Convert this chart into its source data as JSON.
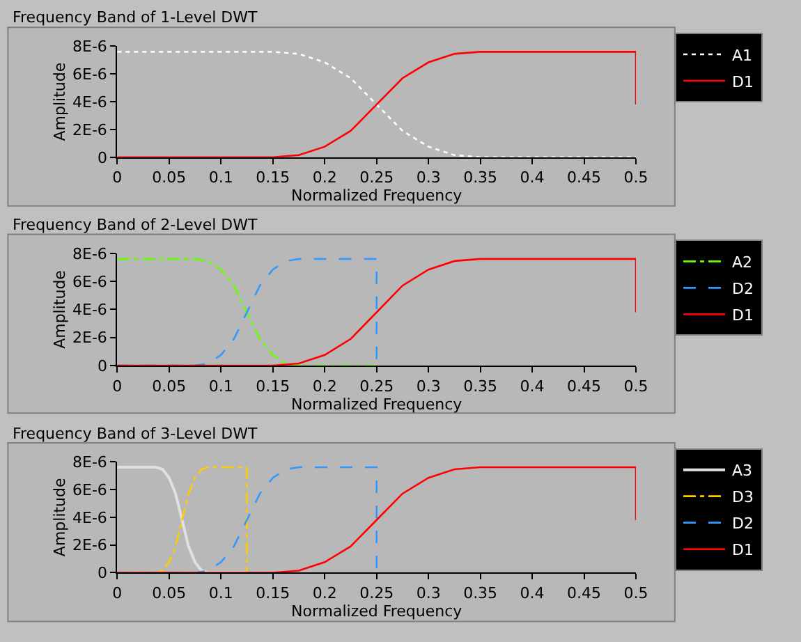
{
  "chart_data": [
    {
      "type": "line",
      "title": "Frequency Band of 1-Level DWT",
      "xlabel": "Normalized Frequency",
      "ylabel": "Amplitude",
      "xlim": [
        0,
        0.5
      ],
      "xticks": [
        0,
        0.05,
        0.1,
        0.15,
        0.2,
        0.25,
        0.3,
        0.35,
        0.4,
        0.45,
        0.5
      ],
      "ylim": [
        0,
        8e-06
      ],
      "yticks": [
        0,
        {
          "value": 2e-06,
          "label": "2E-6"
        },
        {
          "value": 4e-06,
          "label": "4E-6"
        },
        {
          "value": 6e-06,
          "label": "6E-6"
        },
        {
          "value": 8e-06,
          "label": "8E-6"
        }
      ],
      "grid": false,
      "legend": "right",
      "series": [
        {
          "name": "A1",
          "color": "#ffffff",
          "line_style": "dotted",
          "x": [
            0,
            0.15,
            0.175,
            0.2,
            0.225,
            0.25,
            0.275,
            0.3,
            0.325,
            0.35,
            0.5
          ],
          "values": [
            7.6e-06,
            7.6e-06,
            7.45e-06,
            6.84e-06,
            5.7e-06,
            3.8e-06,
            1.9e-06,
            7.6e-07,
            1.5e-07,
            0,
            0
          ]
        },
        {
          "name": "D1",
          "color": "#ff0000",
          "line_style": "solid",
          "x": [
            0,
            0.15,
            0.175,
            0.2,
            0.225,
            0.25,
            0.275,
            0.3,
            0.325,
            0.35,
            0.5,
            0.5
          ],
          "values": [
            0,
            0,
            1.5e-07,
            7.6e-07,
            1.9e-06,
            3.8e-06,
            5.7e-06,
            6.84e-06,
            7.45e-06,
            7.6e-06,
            7.6e-06,
            3.8e-06
          ]
        }
      ]
    },
    {
      "type": "line",
      "title": "Frequency Band of 2-Level DWT",
      "xlabel": "Normalized Frequency",
      "ylabel": "Amplitude",
      "xlim": [
        0,
        0.5
      ],
      "xticks": [
        0,
        0.05,
        0.1,
        0.15,
        0.2,
        0.25,
        0.3,
        0.35,
        0.4,
        0.45,
        0.5
      ],
      "ylim": [
        0,
        8e-06
      ],
      "yticks": [
        0,
        {
          "value": 2e-06,
          "label": "2E-6"
        },
        {
          "value": 4e-06,
          "label": "4E-6"
        },
        {
          "value": 6e-06,
          "label": "6E-6"
        },
        {
          "value": 8e-06,
          "label": "8E-6"
        }
      ],
      "grid": false,
      "legend": "right",
      "series": [
        {
          "name": "A2",
          "color": "#66ff00",
          "line_style": "dashdot",
          "x": [
            0,
            0.075,
            0.0875,
            0.1,
            0.1125,
            0.125,
            0.1375,
            0.15,
            0.1625,
            0.175,
            0.25
          ],
          "values": [
            7.6e-06,
            7.6e-06,
            7.45e-06,
            6.84e-06,
            5.7e-06,
            3.8e-06,
            1.9e-06,
            7.6e-07,
            1.5e-07,
            0,
            0
          ]
        },
        {
          "name": "D2",
          "color": "#3399ff",
          "line_style": "dashed",
          "x": [
            0,
            0.075,
            0.0875,
            0.1,
            0.1125,
            0.125,
            0.1375,
            0.15,
            0.1625,
            0.175,
            0.25,
            0.25
          ],
          "values": [
            0,
            0,
            1.5e-07,
            7.6e-07,
            1.9e-06,
            3.8e-06,
            5.7e-06,
            6.84e-06,
            7.45e-06,
            7.6e-06,
            7.6e-06,
            0
          ]
        },
        {
          "name": "D1",
          "color": "#ff0000",
          "line_style": "solid",
          "x": [
            0,
            0.15,
            0.175,
            0.2,
            0.225,
            0.25,
            0.275,
            0.3,
            0.325,
            0.35,
            0.5,
            0.5
          ],
          "values": [
            0,
            0,
            1.5e-07,
            7.6e-07,
            1.9e-06,
            3.8e-06,
            5.7e-06,
            6.84e-06,
            7.45e-06,
            7.6e-06,
            7.6e-06,
            3.8e-06
          ]
        }
      ]
    },
    {
      "type": "line",
      "title": "Frequency Band of 3-Level DWT",
      "xlabel": "Normalized Frequency",
      "ylabel": "Amplitude",
      "xlim": [
        0,
        0.5
      ],
      "xticks": [
        0,
        0.05,
        0.1,
        0.15,
        0.2,
        0.25,
        0.3,
        0.35,
        0.4,
        0.45,
        0.5
      ],
      "ylim": [
        0,
        8e-06
      ],
      "yticks": [
        0,
        {
          "value": 2e-06,
          "label": "2E-6"
        },
        {
          "value": 4e-06,
          "label": "4E-6"
        },
        {
          "value": 6e-06,
          "label": "6E-6"
        },
        {
          "value": 8e-06,
          "label": "8E-6"
        }
      ],
      "grid": false,
      "legend": "right",
      "series": [
        {
          "name": "A3",
          "color": "#e0e0e0",
          "line_style": "solid",
          "x": [
            0,
            0.0375,
            0.04375,
            0.05,
            0.05625,
            0.0625,
            0.06875,
            0.075,
            0.08125,
            0.0875,
            0.125
          ],
          "values": [
            7.6e-06,
            7.6e-06,
            7.45e-06,
            6.84e-06,
            5.7e-06,
            3.8e-06,
            1.9e-06,
            7.6e-07,
            1.5e-07,
            0,
            0
          ]
        },
        {
          "name": "D3",
          "color": "#ffcc00",
          "line_style": "dashdot",
          "x": [
            0,
            0.0375,
            0.04375,
            0.05,
            0.05625,
            0.0625,
            0.06875,
            0.075,
            0.08125,
            0.0875,
            0.125,
            0.125
          ],
          "values": [
            0,
            0,
            1.5e-07,
            7.6e-07,
            1.9e-06,
            3.8e-06,
            5.7e-06,
            6.84e-06,
            7.45e-06,
            7.6e-06,
            7.6e-06,
            0
          ]
        },
        {
          "name": "D2",
          "color": "#3399ff",
          "line_style": "dashed",
          "x": [
            0,
            0.075,
            0.0875,
            0.1,
            0.1125,
            0.125,
            0.1375,
            0.15,
            0.1625,
            0.175,
            0.25,
            0.25
          ],
          "values": [
            0,
            0,
            1.5e-07,
            7.6e-07,
            1.9e-06,
            3.8e-06,
            5.7e-06,
            6.84e-06,
            7.45e-06,
            7.6e-06,
            7.6e-06,
            0
          ]
        },
        {
          "name": "D1",
          "color": "#ff0000",
          "line_style": "solid",
          "x": [
            0,
            0.15,
            0.175,
            0.2,
            0.225,
            0.25,
            0.275,
            0.3,
            0.325,
            0.35,
            0.5,
            0.5
          ],
          "values": [
            0,
            0,
            1.5e-07,
            7.6e-07,
            1.9e-06,
            3.8e-06,
            5.7e-06,
            6.84e-06,
            7.45e-06,
            7.6e-06,
            7.6e-06,
            3.8e-06
          ]
        }
      ]
    }
  ]
}
